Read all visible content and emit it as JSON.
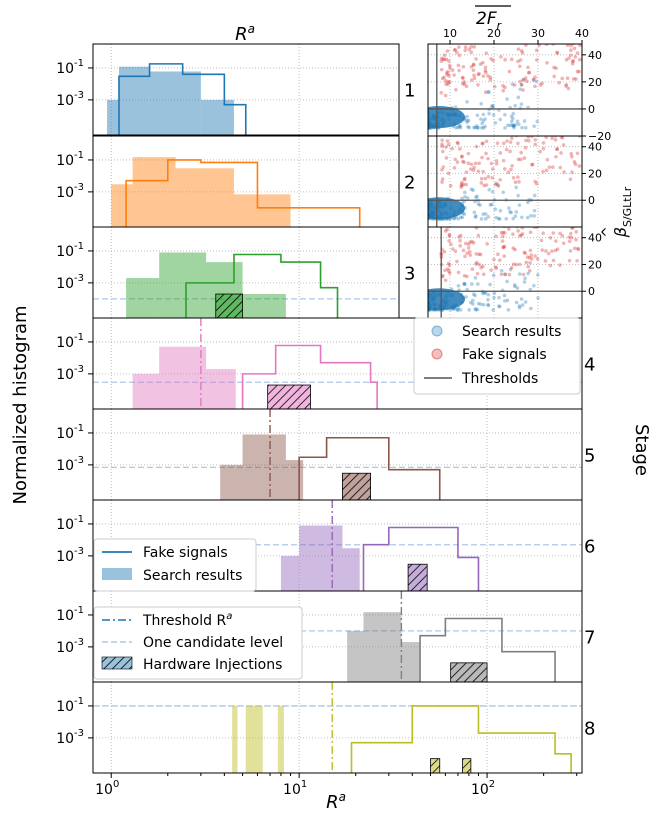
{
  "chart_data": {
    "type": "histogram-panel-grid",
    "top_xlabel": "R",
    "top_xlabel_sup": "a",
    "bottom_xlabel": "R",
    "bottom_xlabel_sup": "a",
    "ylabel": "Normalized histogram",
    "stage_label": "Stage",
    "x_scale": "log",
    "xlim": [
      0.8,
      320
    ],
    "x_ticks": [
      {
        "value": 1,
        "label": "10",
        "sup": "0"
      },
      {
        "value": 10,
        "label": "10",
        "sup": "1"
      },
      {
        "value": 100,
        "label": "10",
        "sup": "2"
      }
    ],
    "y_scale": "log",
    "y_ticks": [
      {
        "value": 0.1,
        "label": "10",
        "sup": "-1"
      },
      {
        "value": 0.001,
        "label": "10",
        "sup": "-3"
      }
    ],
    "colors": [
      "#1f77b4",
      "#ff7f0e",
      "#2ca02c",
      "#e377c2",
      "#8c564b",
      "#9467bd",
      "#7f7f7f",
      "#bcbd22"
    ],
    "stages": [
      {
        "stage": "1",
        "search": [
          [
            0.95,
            1.1,
            0.001
          ],
          [
            1.1,
            1.6,
            0.12
          ],
          [
            1.6,
            3.0,
            0.06
          ],
          [
            3.0,
            4.5,
            0.001
          ]
        ],
        "fake": [
          [
            1.1,
            1.6,
            0.03
          ],
          [
            1.6,
            2.4,
            0.18
          ],
          [
            2.4,
            4.0,
            0.04
          ],
          [
            4.0,
            5.2,
            0.0005
          ]
        ],
        "threshold": null,
        "hardware": null,
        "one_candidate": null
      },
      {
        "stage": "2",
        "search": [
          [
            1.0,
            1.3,
            0.003
          ],
          [
            1.3,
            2.2,
            0.15
          ],
          [
            2.2,
            4.5,
            0.03
          ],
          [
            4.5,
            9.0,
            0.0007
          ]
        ],
        "fake": [
          [
            1.2,
            2.0,
            0.005
          ],
          [
            2.0,
            3.0,
            0.1
          ],
          [
            3.0,
            6.0,
            0.07
          ],
          [
            6.0,
            21.0,
            0.0001
          ]
        ],
        "threshold": null,
        "hardware": null,
        "one_candidate": null
      },
      {
        "stage": "3",
        "search": [
          [
            1.2,
            1.8,
            0.002
          ],
          [
            1.8,
            3.2,
            0.08
          ],
          [
            3.2,
            5.0,
            0.02
          ],
          [
            5.0,
            8.5,
            0.0002
          ]
        ],
        "fake": [
          [
            2.5,
            4.5,
            0.001
          ],
          [
            4.5,
            8.0,
            0.06
          ],
          [
            8.0,
            13.0,
            0.02
          ],
          [
            13.0,
            16.0,
            0.0005
          ]
        ],
        "threshold": null,
        "hardware": [
          [
            3.6,
            5.0,
            0.0002
          ]
        ],
        "one_candidate": 0.0001
      },
      {
        "stage": "4",
        "search": [
          [
            1.3,
            1.8,
            0.001
          ],
          [
            1.8,
            3.2,
            0.05
          ],
          [
            3.2,
            4.6,
            0.002
          ]
        ],
        "fake": [
          [
            5.0,
            7.5,
            0.001
          ],
          [
            7.5,
            13.0,
            0.06
          ],
          [
            13.0,
            24.0,
            0.005
          ],
          [
            24.0,
            26.0,
            0.0003
          ]
        ],
        "threshold": 3.0,
        "hardware": [
          [
            6.8,
            11.5,
            0.0002
          ]
        ],
        "one_candidate": 0.0003
      },
      {
        "stage": "5",
        "search": [
          [
            3.8,
            5.0,
            0.001
          ],
          [
            5.0,
            8.5,
            0.08
          ],
          [
            8.5,
            10.5,
            0.002
          ]
        ],
        "fake": [
          [
            10.0,
            14.0,
            0.003
          ],
          [
            14.0,
            30.0,
            0.05
          ],
          [
            30.0,
            56.0,
            0.0005
          ]
        ],
        "threshold": 7.0,
        "hardware": [
          [
            17.0,
            24.0,
            0.0003
          ]
        ],
        "one_candidate": 0.0007
      },
      {
        "stage": "6",
        "search": [
          [
            8.0,
            10.0,
            0.001
          ],
          [
            10.0,
            17.0,
            0.08
          ],
          [
            17.0,
            21.0,
            0.003
          ]
        ],
        "fake": [
          [
            22.0,
            30.0,
            0.005
          ],
          [
            30.0,
            70.0,
            0.06
          ],
          [
            70.0,
            90.0,
            0.0008
          ]
        ],
        "threshold": 15.0,
        "hardware": [
          [
            38.0,
            48.0,
            0.0003
          ]
        ],
        "one_candidate": 0.005
      },
      {
        "stage": "7",
        "search": [
          [
            18.0,
            22.0,
            0.01
          ],
          [
            22.0,
            35.0,
            0.15
          ],
          [
            35.0,
            44.0,
            0.002
          ]
        ],
        "fake": [
          [
            44.0,
            60.0,
            0.005
          ],
          [
            60.0,
            120.0,
            0.06
          ],
          [
            120.0,
            230.0,
            0.0005
          ]
        ],
        "threshold": 35.0,
        "hardware": [
          [
            64.0,
            100.0,
            0.0001
          ]
        ],
        "one_candidate": 0.01
      },
      {
        "stage": "8",
        "search": [
          [
            4.4,
            4.7,
            0.1
          ],
          [
            5.2,
            6.4,
            0.1
          ],
          [
            7.7,
            8.3,
            0.1
          ]
        ],
        "fake": [
          [
            19.0,
            40.0,
            0.0005
          ],
          [
            40.0,
            90.0,
            0.1
          ],
          [
            90.0,
            230.0,
            0.002
          ],
          [
            230.0,
            280.0,
            0.0001
          ]
        ],
        "threshold": 15.0,
        "hardware": [
          [
            50.0,
            56.0,
            5e-05
          ],
          [
            74.0,
            82.0,
            5e-05
          ]
        ],
        "one_candidate": 0.1
      }
    ],
    "scatter": {
      "xlabel": "2F",
      "xlabel_sub": "r",
      "ylabel": "β",
      "ylabel_sub": "S/GLtLr",
      "xlim": [
        5,
        40
      ],
      "ylim": [
        -20,
        48
      ],
      "x_ticks": [
        10,
        20,
        30,
        40
      ],
      "y_ticks": [
        40,
        20,
        0,
        -20
      ],
      "threshold_x": [
        7,
        7,
        8
      ],
      "threshold_y": [
        0,
        0,
        0
      ],
      "stages": [
        "1",
        "2",
        "3"
      ]
    },
    "legends": {
      "scatter_legend": [
        {
          "label": "Search results",
          "color": "#1f77b4"
        },
        {
          "label": "Fake signals",
          "color": "#d62728"
        },
        {
          "label": "Thresholds",
          "color": "#555555"
        }
      ],
      "hist_legend_a": [
        {
          "label": "Fake signals",
          "color": "#1f77b4"
        },
        {
          "label": "Search results",
          "color": "#1f77b4"
        }
      ],
      "hist_legend_b": [
        {
          "label": "Threshold R",
          "label_sup": "a",
          "color": "#1f77b4"
        },
        {
          "label": "One candidate level",
          "color": "#aec7e8"
        },
        {
          "label": "Hardware Injections",
          "color": "#1f77b4"
        }
      ]
    }
  }
}
